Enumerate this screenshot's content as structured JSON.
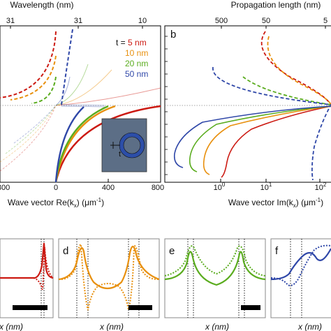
{
  "colors": {
    "t5": "#cc1a12",
    "t10": "#e8900e",
    "t20": "#5aac1e",
    "t50": "#2f47a8",
    "inset_bg": "#5c6e86",
    "inset_ring": "#2c4ea8"
  },
  "chart_data": [
    {
      "id": "a",
      "type": "line",
      "panel_label": "",
      "top_axis_label": "Wavelength (nm)",
      "top_ticks": [
        "31",
        "31",
        "10"
      ],
      "xlabel": "Wave vector Re(k",
      "xlabel_sub": "x",
      "xlabel_tail": ") (μm",
      "xlabel_sup": "-1",
      "xlabel_end": ")",
      "x_ticks": [
        "800",
        "0",
        "400",
        "800"
      ],
      "xlim": [
        -800,
        800
      ],
      "legend_title": "t = ",
      "series": [
        {
          "name": "5 nm",
          "color_key": "t5"
        },
        {
          "name": "10 nm",
          "color_key": "t10"
        },
        {
          "name": "20 nm",
          "color_key": "t20"
        },
        {
          "name": "50 nm",
          "color_key": "t50"
        }
      ],
      "inset_label": "t"
    },
    {
      "id": "b",
      "type": "line",
      "panel_label": "b",
      "top_axis_label": "Propagation length (nm)",
      "top_ticks": [
        "500",
        "50",
        "5"
      ],
      "xlabel": "Wave vector Im(k",
      "xlabel_sub": "x",
      "xlabel_tail": ") (μm",
      "xlabel_sup": "-1",
      "xlabel_end": ")",
      "x_ticks": [
        {
          "base": "10",
          "exp": "0"
        },
        {
          "base": "10",
          "exp": "1"
        },
        {
          "base": "10",
          "exp": "2"
        }
      ],
      "x_scale": "log",
      "xlim": [
        0.1,
        150
      ]
    },
    {
      "id": "c",
      "type": "line",
      "panel_label": "",
      "xlabel": "x (nm)",
      "color_key": "t5"
    },
    {
      "id": "d",
      "type": "line",
      "panel_label": "d",
      "xlabel": "x (nm)",
      "color_key": "t10"
    },
    {
      "id": "e",
      "type": "line",
      "panel_label": "e",
      "xlabel": "x (nm)",
      "color_key": "t20"
    },
    {
      "id": "f",
      "type": "line",
      "panel_label": "f",
      "xlabel": "x (nm)",
      "color_key": "t50"
    }
  ]
}
